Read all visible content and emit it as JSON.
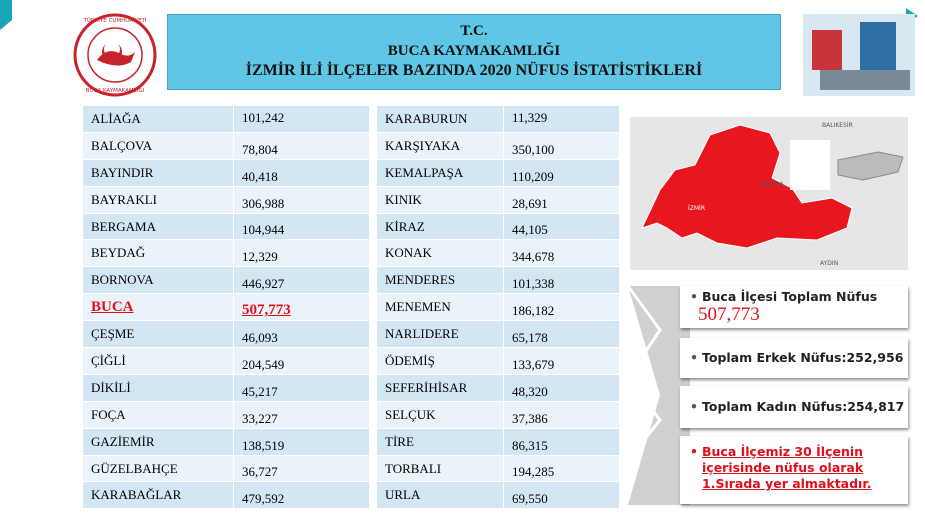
{
  "logo": {
    "top": "TÜRKİYE CUMHURİYETİ",
    "bottom": "BUCA KAYMAKAMLIĞI"
  },
  "header": {
    "lines": [
      "T.C.",
      "BUCA KAYMAKAMLIĞI",
      "İZMİR İLİ İLÇELER BAZINDA 2020 NÜFUS İSTATİSTİKLERİ"
    ]
  },
  "table_left": {
    "rows": [
      [
        "ALİAĞA",
        "101,242"
      ],
      [
        "BALÇOVA",
        "78,804"
      ],
      [
        "BAYINDIR",
        "40,418"
      ],
      [
        "BAYRAKLI",
        "306,988"
      ],
      [
        "BERGAMA",
        "104,944"
      ],
      [
        "BEYDAĞ",
        "12,329"
      ],
      [
        "BORNOVA",
        "446,927"
      ],
      [
        "BUCA",
        "507,773"
      ],
      [
        "ÇEŞME",
        "46,093"
      ],
      [
        "ÇİĞLİ",
        "204,549"
      ],
      [
        "DİKİLİ",
        "45,217"
      ],
      [
        "FOÇA",
        "33,227"
      ],
      [
        "GAZİEMİR",
        "138,519"
      ],
      [
        "GÜZELBAHÇE",
        "36,727"
      ],
      [
        "KARABAĞLAR",
        "479,592"
      ]
    ]
  },
  "table_right": {
    "rows": [
      [
        "KARABURUN",
        "11,329"
      ],
      [
        "KARŞIYAKA",
        "350,100"
      ],
      [
        "KEMALPAŞA",
        "110,209"
      ],
      [
        "KINIK",
        "28,691"
      ],
      [
        "KİRAZ",
        "44,105"
      ],
      [
        "KONAK",
        "344,678"
      ],
      [
        "MENDERES",
        "101,338"
      ],
      [
        "MENEMEN",
        "186,182"
      ],
      [
        "NARLIDERE",
        "65,178"
      ],
      [
        "ÖDEMİŞ",
        "133,679"
      ],
      [
        "SEFERİHİSAR",
        "48,320"
      ],
      [
        "SELÇUK",
        "37,386"
      ],
      [
        "TİRE",
        "86,315"
      ],
      [
        "TORBALI",
        "194,285"
      ],
      [
        "URLA",
        "69,550"
      ]
    ]
  },
  "map": {
    "labels": [
      "BALIKESİR",
      "MANİSA",
      "İZMİR",
      "AYDIN"
    ]
  },
  "info": {
    "items": [
      {
        "text": "Buca İlçesi Toplam Nüfus",
        "value": "507,773"
      },
      {
        "text": "Toplam Erkek Nüfus:252,956"
      },
      {
        "text": "Toplam Kadın Nüfus:254,817"
      },
      {
        "text": "Buca İlçemiz 30 İlçenin içerisinde  nüfus olarak 1.Sırada yer almaktadır."
      }
    ]
  }
}
